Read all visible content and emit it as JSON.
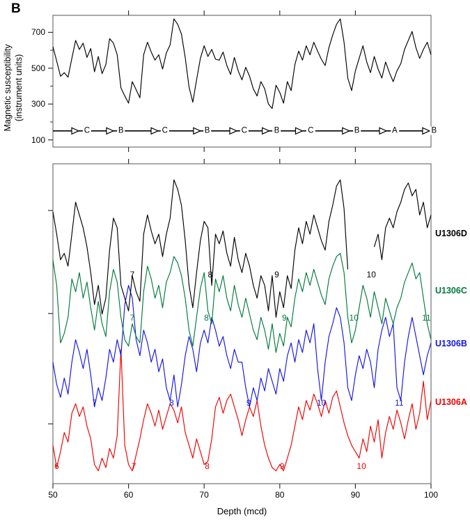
{
  "figure": {
    "panel_letter": "B",
    "background": "#ffffff"
  },
  "chart_data": {
    "type": "line",
    "panels": [
      {
        "id": "susceptibility-splice",
        "ylabel_line1": "Magnetic susceptibility",
        "ylabel_line2": "(instrument units)",
        "ylim": [
          60,
          795
        ],
        "yticks": [
          100,
          300,
          500,
          700
        ],
        "yticks_minor": [
          200,
          400,
          600
        ],
        "xlim": [
          50,
          100
        ],
        "xticks_edge": [
          60,
          70,
          80,
          90
        ],
        "hole_markers": {
          "y_value": 150,
          "items": [
            {
              "arrow_depth": 52.9,
              "letter_depth": 54.5,
              "letter": "C"
            },
            {
              "arrow_depth": 57.5,
              "letter_depth": 59.0,
              "letter": "B"
            },
            {
              "arrow_depth": 63.4,
              "letter_depth": 64.8,
              "letter": "C"
            },
            {
              "arrow_depth": 69.0,
              "letter_depth": 70.4,
              "letter": "B"
            },
            {
              "arrow_depth": 73.8,
              "letter_depth": 75.3,
              "letter": "C"
            },
            {
              "arrow_depth": 78.1,
              "letter_depth": 79.6,
              "letter": "B"
            },
            {
              "arrow_depth": 82.5,
              "letter_depth": 84.1,
              "letter": "C"
            },
            {
              "arrow_depth": 88.7,
              "letter_depth": 90.2,
              "letter": "B"
            },
            {
              "arrow_depth": 93.6,
              "letter_depth": 95.2,
              "letter": "A"
            },
            {
              "arrow_depth": 99.3,
              "letter_depth": 100.4,
              "letter": "B"
            }
          ]
        },
        "series": [
          {
            "name": "spliced-record",
            "color": "#000000",
            "x_start": 50,
            "x_step": 0.5,
            "units": "instrument units",
            "values": [
              620,
              540,
              455,
              475,
              450,
              555,
              655,
              605,
              640,
              560,
              610,
              480,
              565,
              470,
              520,
              665,
              640,
              575,
              390,
              345,
              305,
              425,
              380,
              335,
              575,
              645,
              590,
              545,
              575,
              495,
              585,
              630,
              775,
              745,
              690,
              560,
              395,
              310,
              435,
              555,
              625,
              565,
              605,
              550,
              545,
              590,
              515,
              465,
              560,
              485,
              435,
              505,
              455,
              385,
              345,
              425,
              385,
              300,
              275,
              405,
              365,
              305,
              425,
              375,
              520,
              595,
              545,
              625,
              575,
              645,
              595,
              550,
              515,
              615,
              685,
              745,
              775,
              645,
              445,
              375,
              485,
              555,
              625,
              535,
              475,
              565,
              495,
              445,
              535,
              475,
              425,
              485,
              525,
              605,
              655,
              705,
              615,
              555,
              605,
              645,
              575
            ]
          }
        ]
      },
      {
        "id": "holes-by-depth",
        "xlabel": "Depth (mcd)",
        "xlim": [
          50,
          100
        ],
        "xticks": [
          50,
          60,
          70,
          80,
          90,
          100
        ],
        "xticks_edge_top": [
          60,
          70,
          80,
          90
        ],
        "ylim": [
          0,
          100
        ],
        "yticks_unlabeled": [
          18.7,
          53.2,
          85.4
        ],
        "series": [
          {
            "name": "U1306D",
            "color": "#000000",
            "x_start": 50,
            "x_step": 0.5,
            "label_y": 78.2,
            "stage_label_y": 65.4,
            "stage_labels": [
              {
                "depth": 60.5,
                "text": "7"
              },
              {
                "depth": 70.8,
                "text": "8"
              },
              {
                "depth": 79.6,
                "text": "9"
              },
              {
                "depth": 92.1,
                "text": "10"
              }
            ],
            "values": [
              85,
              78,
              70,
              72,
              68,
              78,
              88,
              84,
              80,
              74,
              66,
              56,
              62,
              53,
              58,
              73,
              83,
              80,
              62,
              58,
              54,
              65,
              60,
              57,
              78,
              84,
              79,
              75,
              78,
              71,
              78,
              83,
              95,
              92,
              87,
              76,
              62,
              55,
              66,
              76,
              82,
              80,
              62,
              78,
              75,
              79,
              72,
              68,
              77,
              70,
              66,
              72,
              68,
              62,
              58,
              65,
              62,
              54,
              65,
              52,
              60,
              55,
              65,
              61,
              73,
              80,
              75,
              82,
              78,
              84,
              80,
              76,
              73,
              82,
              87,
              93,
              95,
              86,
              67,
              null,
              null,
              null,
              null,
              null,
              null,
              74,
              78,
              70,
              80,
              83,
              80,
              85,
              88,
              92,
              94,
              90,
              92,
              84,
              88,
              80,
              84
            ]
          },
          {
            "name": "U1306C",
            "color": "#007a3c",
            "x_start": 50,
            "x_step": 0.5,
            "label_y": 60.3,
            "stage_label_y": 51.9,
            "stage_labels": [
              {
                "depth": 60.5,
                "text": "7"
              },
              {
                "depth": 70.3,
                "text": "8"
              },
              {
                "depth": 80.6,
                "text": "9"
              },
              {
                "depth": 89.8,
                "text": "10"
              },
              {
                "depth": 99.4,
                "text": "11"
              }
            ],
            "values": [
              70,
              62,
              44,
              47,
              52,
              64,
              60,
              66,
              58,
              63,
              55,
              48,
              57,
              50,
              46,
              60,
              67,
              63,
              52,
              45,
              43,
              50,
              46,
              44,
              60,
              68,
              64,
              58,
              62,
              55,
              63,
              66,
              71,
              69,
              65,
              58,
              48,
              43,
              52,
              61,
              66,
              54,
              50,
              64,
              60,
              65,
              58,
              54,
              62,
              56,
              52,
              58,
              53,
              48,
              45,
              52,
              48,
              42,
              50,
              41,
              47,
              43,
              52,
              49,
              58,
              64,
              60,
              66,
              62,
              67,
              63,
              59,
              56,
              64,
              68,
              71,
              72,
              66,
              52,
              44,
              48,
              55,
              62,
              58,
              52,
              60,
              55,
              50,
              58,
              54,
              50,
              55,
              58,
              63,
              66,
              69,
              64,
              66,
              58,
              50,
              45
            ]
          },
          {
            "name": "U1306B",
            "color": "#1414e6",
            "x_start": 50,
            "x_step": 0.5,
            "label_y": 43.8,
            "stage_label_y": 25.3,
            "stage_labels": [
              {
                "depth": 55.5,
                "text": "7"
              },
              {
                "depth": 65.7,
                "text": "8"
              },
              {
                "depth": 75.9,
                "text": "9"
              },
              {
                "depth": 85.5,
                "text": "10"
              },
              {
                "depth": 95.8,
                "text": "11"
              }
            ],
            "values": [
              38,
              31,
              27,
              33,
              28,
              38,
              45,
              41,
              36,
              42,
              34,
              24,
              30,
              26,
              33,
              42,
              38,
              45,
              40,
              56,
              62,
              58,
              45,
              40,
              48,
              44,
              38,
              42,
              35,
              39,
              30,
              26,
              34,
              24,
              31,
              40,
              46,
              42,
              35,
              44,
              48,
              44,
              52,
              48,
              43,
              46,
              40,
              36,
              42,
              38,
              38,
              30,
              24,
              30,
              26,
              33,
              29,
              36,
              32,
              28,
              36,
              32,
              40,
              44,
              38,
              45,
              41,
              48,
              44,
              50,
              36,
              26,
              38,
              46,
              50,
              55,
              52,
              44,
              30,
              26,
              34,
              40,
              36,
              42,
              38,
              30,
              42,
              48,
              52,
              46,
              50,
              30,
              26,
              38,
              46,
              52,
              46,
              40,
              34,
              40,
              44
            ]
          },
          {
            "name": "U1306A",
            "color": "#ee0000",
            "x_start": 50,
            "x_step": 0.5,
            "label_y": 25.5,
            "stage_label_y": 5.4,
            "stage_labels": [
              {
                "depth": 50.5,
                "text": "6"
              },
              {
                "depth": 60.7,
                "text": "7"
              },
              {
                "depth": 70.4,
                "text": "8"
              },
              {
                "depth": 80.3,
                "text": "9"
              },
              {
                "depth": 90.8,
                "text": "10"
              }
            ],
            "values": [
              12,
              5,
              10,
              16,
              13,
              22,
              25,
              21,
              24,
              18,
              14,
              6,
              4,
              8,
              5,
              11,
              8,
              15,
              42,
              12,
              6,
              4,
              9,
              14,
              20,
              25,
              22,
              18,
              23,
              17,
              21,
              25,
              23,
              19,
              24,
              16,
              12,
              8,
              14,
              10,
              6,
              7,
              14,
              24,
              27,
              22,
              26,
              28,
              24,
              20,
              15,
              20,
              24,
              21,
              26,
              18,
              12,
              8,
              5,
              4,
              6,
              4,
              8,
              12,
              18,
              24,
              20,
              26,
              23,
              28,
              25,
              21,
              26,
              22,
              27,
              29,
              24,
              19,
              15,
              12,
              10,
              8,
              14,
              10,
              18,
              13,
              20,
              8,
              16,
              21,
              17,
              23,
              19,
              14,
              20,
              25,
              17,
              22,
              32,
              20,
              26
            ]
          }
        ]
      }
    ]
  }
}
